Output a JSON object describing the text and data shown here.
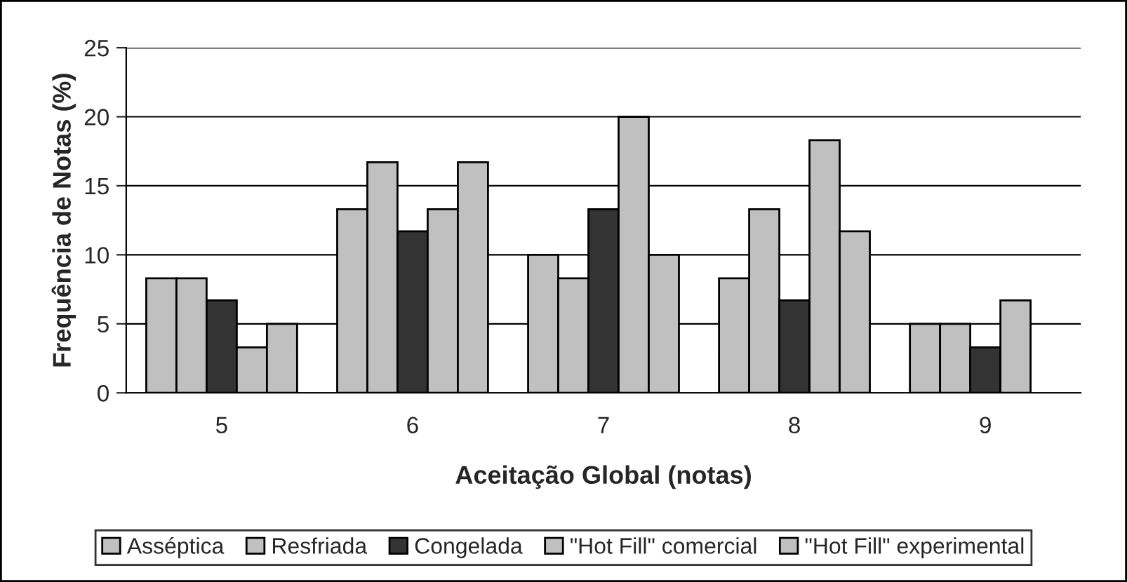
{
  "chart_data": {
    "type": "bar",
    "xlabel": "Aceitação Global (notas)",
    "ylabel": "Frequência de Notas (%)",
    "categories": [
      "5",
      "6",
      "7",
      "8",
      "9"
    ],
    "series": [
      {
        "name": "Asséptica",
        "color": "#c0c0c0",
        "values": [
          8.3,
          13.3,
          10,
          8.3,
          5
        ]
      },
      {
        "name": "Resfriada",
        "color": "#c0c0c0",
        "values": [
          8.3,
          16.7,
          8.3,
          13.3,
          5
        ]
      },
      {
        "name": "Congelada",
        "color": "#333333",
        "values": [
          6.7,
          11.7,
          13.3,
          6.7,
          3.3
        ]
      },
      {
        "name": "\"Hot Fill\" comercial",
        "color": "#c0c0c0",
        "values": [
          3.3,
          13.3,
          20,
          18.3,
          6.7
        ]
      },
      {
        "name": "\"Hot Fill\" experimental",
        "color": "#c0c0c0",
        "values": [
          5,
          16.7,
          10,
          11.7,
          null
        ]
      }
    ],
    "ylim": [
      0,
      25
    ],
    "yticks": [
      0,
      5,
      10,
      15,
      20,
      25
    ],
    "grid": "y",
    "legend": "bottom"
  }
}
